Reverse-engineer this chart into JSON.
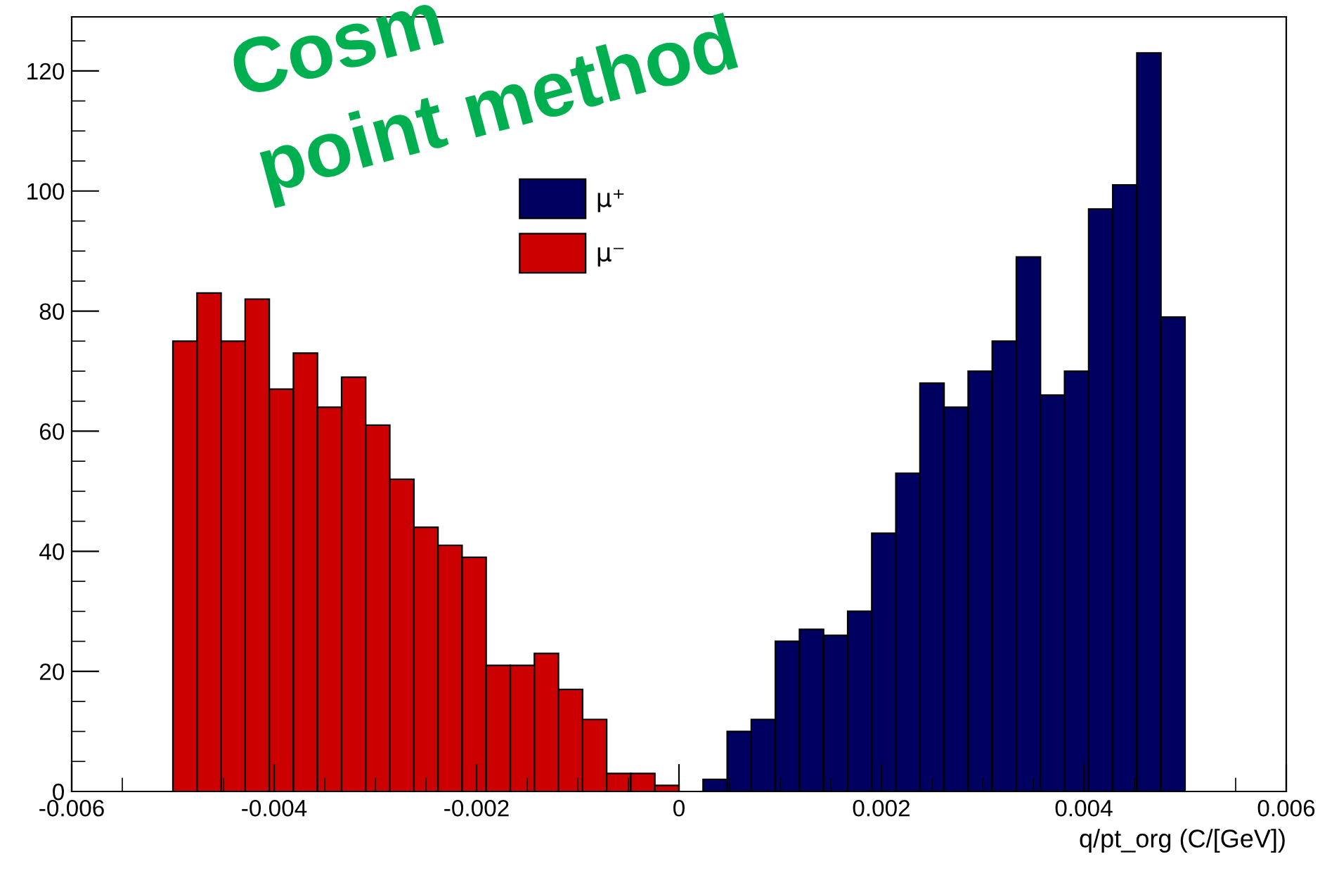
{
  "chart_data": {
    "type": "histogram",
    "xlabel": "q/pt_org (C/[GeV])",
    "annotations": [
      "Cosm",
      "point method"
    ],
    "bins": [
      -0.005,
      -0.0047619,
      -0.0045238,
      -0.0042857,
      -0.0040476,
      -0.0038095,
      -0.0035714,
      -0.0033333,
      -0.0030952,
      -0.0028571,
      -0.002619,
      -0.002381,
      -0.0021429,
      -0.0019048,
      -0.0016667,
      -0.0014286,
      -0.0011905,
      -0.0009524,
      -0.0007143,
      -0.0004762,
      -0.0002381,
      0,
      0.0002381,
      0.0004762,
      0.0007143,
      0.0009524,
      0.0011905,
      0.0014286,
      0.0016667,
      0.0019048,
      0.0021429,
      0.002381,
      0.002619,
      0.0028571,
      0.0030952,
      0.0033333,
      0.0035714,
      0.0038095,
      0.0040476,
      0.0042857,
      0.0045238,
      0.0047619,
      0.005
    ],
    "series": [
      {
        "name": "μ⁺",
        "color": "#000060",
        "values": [
          null,
          null,
          null,
          null,
          null,
          null,
          null,
          null,
          null,
          null,
          null,
          null,
          null,
          null,
          null,
          null,
          null,
          null,
          null,
          null,
          null,
          null,
          2,
          10,
          12,
          25,
          27,
          26,
          30,
          43,
          53,
          68,
          64,
          70,
          75,
          89,
          66,
          70,
          97,
          101,
          123,
          79
        ]
      },
      {
        "name": "μ⁻",
        "color": "#cc0000",
        "values": [
          75,
          83,
          75,
          82,
          67,
          73,
          64,
          69,
          61,
          52,
          44,
          41,
          39,
          21,
          21,
          23,
          17,
          12,
          3,
          3,
          1,
          null,
          null,
          null,
          null,
          null,
          null,
          null,
          null,
          null,
          null,
          null,
          null,
          null,
          null,
          null,
          null,
          null,
          null,
          null,
          null,
          null
        ]
      }
    ],
    "xlim": [
      -0.006,
      0.006
    ],
    "xticks": [
      -0.006,
      -0.004,
      -0.002,
      0,
      0.002,
      0.004,
      0.006
    ],
    "ylim": [
      0,
      129
    ],
    "yticks": [
      0,
      20,
      40,
      60,
      80,
      100,
      120
    ],
    "legend": "top",
    "grid": false
  }
}
